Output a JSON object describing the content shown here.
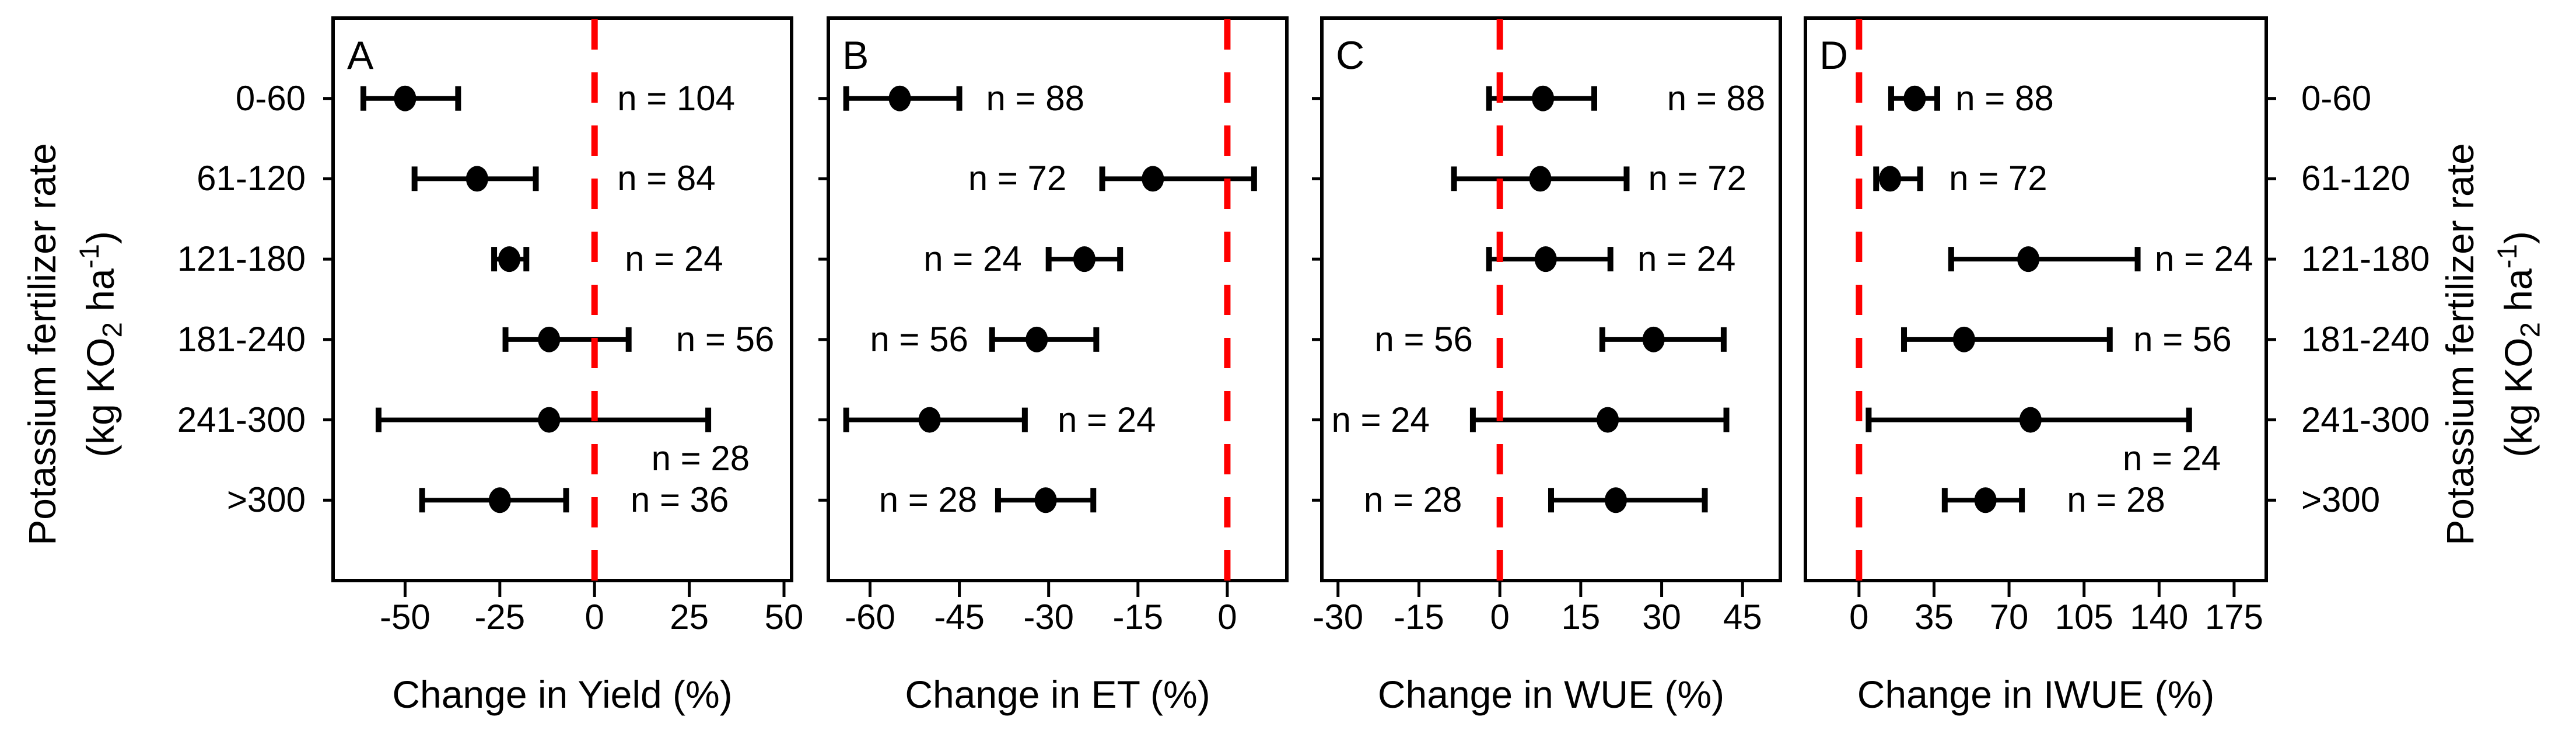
{
  "categories": [
    "0-60",
    "61-120",
    "121-180",
    "181-240",
    "241-300",
    ">300"
  ],
  "y_axis_title": {
    "line1": "Potassium fertilizer rate",
    "line2_pre": "(kg KO",
    "line2_sub": "2",
    "line2_mid": " ha",
    "line2_sup": "-1",
    "line2_post": ")"
  },
  "colors": {
    "marker": "#000000",
    "axis": "#000000",
    "reference_line": "#FF0000",
    "background": "#FFFFFF"
  },
  "chart_data": [
    {
      "type": "scatter",
      "letter": "A",
      "xlabel": "Change in Yield (%)",
      "xlim": [
        -69,
        52
      ],
      "xticks": [
        -50,
        -25,
        0,
        25,
        50
      ],
      "reference_x": 0,
      "grid": false,
      "rows": [
        {
          "category": "0-60",
          "value": -50,
          "lo": -61,
          "hi": -36,
          "n": "n = 104",
          "label_x": 6,
          "label_side": "start",
          "label_dy": 0
        },
        {
          "category": "61-120",
          "value": -31,
          "lo": -47.5,
          "hi": -15.5,
          "n": "n = 84",
          "label_x": 6,
          "label_side": "start",
          "label_dy": 0
        },
        {
          "category": "121-180",
          "value": -22.5,
          "lo": -26.5,
          "hi": -18,
          "n": "n = 24",
          "label_x": 8,
          "label_side": "start",
          "label_dy": 0
        },
        {
          "category": "181-240",
          "value": -12,
          "lo": -23.5,
          "hi": 9,
          "n": "n = 56",
          "label_x": 21.5,
          "label_side": "start",
          "label_dy": 0
        },
        {
          "category": "241-300",
          "value": -12,
          "lo": -57,
          "hi": 30,
          "n": "n = 28",
          "label_x": 15,
          "label_side": "start",
          "label_dy": 0.48
        },
        {
          "category": ">300",
          "value": -25,
          "lo": -45.5,
          "hi": -7.5,
          "n": "n = 36",
          "label_x": 9.5,
          "label_side": "start",
          "label_dy": 0
        }
      ]
    },
    {
      "type": "scatter",
      "letter": "B",
      "xlabel": "Change in ET (%)",
      "xlim": [
        -67,
        10
      ],
      "xticks": [
        -60,
        -45,
        -30,
        -15,
        0
      ],
      "reference_x": 0,
      "grid": false,
      "rows": [
        {
          "category": "0-60",
          "value": -55,
          "lo": -64,
          "hi": -45,
          "n": "n = 88",
          "label_x": -40.5,
          "label_side": "start",
          "label_dy": 0
        },
        {
          "category": "61-120",
          "value": -12.5,
          "lo": -21,
          "hi": 4.5,
          "n": "n = 72",
          "label_x": -27,
          "label_side": "end",
          "label_dy": 0
        },
        {
          "category": "121-180",
          "value": -24,
          "lo": -30,
          "hi": -18,
          "n": "n = 24",
          "label_x": -34.5,
          "label_side": "end",
          "label_dy": 0
        },
        {
          "category": "181-240",
          "value": -32,
          "lo": -39.5,
          "hi": -22,
          "n": "n = 56",
          "label_x": -43.5,
          "label_side": "end",
          "label_dy": 0
        },
        {
          "category": "241-300",
          "value": -50,
          "lo": -64,
          "hi": -34,
          "n": "n = 24",
          "label_x": -28.5,
          "label_side": "start",
          "label_dy": 0
        },
        {
          "category": ">300",
          "value": -30.5,
          "lo": -38.5,
          "hi": -22.5,
          "n": "n = 28",
          "label_x": -42,
          "label_side": "end",
          "label_dy": 0
        }
      ]
    },
    {
      "type": "scatter",
      "letter": "C",
      "xlabel": "Change in WUE (%)",
      "xlim": [
        -33,
        52
      ],
      "xticks": [
        -30,
        -15,
        0,
        15,
        30,
        45
      ],
      "reference_x": 0,
      "grid": false,
      "rows": [
        {
          "category": "0-60",
          "value": 8,
          "lo": -2,
          "hi": 17.5,
          "n": "n = 88",
          "label_x": 31,
          "label_side": "start",
          "label_dy": 0
        },
        {
          "category": "61-120",
          "value": 7.5,
          "lo": -8.5,
          "hi": 23.5,
          "n": "n = 72",
          "label_x": 27.5,
          "label_side": "start",
          "label_dy": 0
        },
        {
          "category": "121-180",
          "value": 8.5,
          "lo": -2,
          "hi": 20.5,
          "n": "n = 24",
          "label_x": 25.5,
          "label_side": "start",
          "label_dy": 0
        },
        {
          "category": "181-240",
          "value": 28.5,
          "lo": 19,
          "hi": 41.5,
          "n": "n = 56",
          "label_x": -5,
          "label_side": "end",
          "label_dy": 0
        },
        {
          "category": "241-300",
          "value": 20,
          "lo": -5,
          "hi": 42,
          "n": "n = 24",
          "label_x": -13,
          "label_side": "end",
          "label_dy": 0
        },
        {
          "category": ">300",
          "value": 21.5,
          "lo": 9.5,
          "hi": 38,
          "n": "n = 28",
          "label_x": -7,
          "label_side": "end",
          "label_dy": 0
        }
      ]
    },
    {
      "type": "scatter",
      "letter": "D",
      "xlabel": "Change in IWUE (%)",
      "xlim": [
        -25,
        190
      ],
      "xticks": [
        0,
        35,
        70,
        105,
        140,
        175
      ],
      "reference_x": 0,
      "grid": false,
      "rows": [
        {
          "category": "0-60",
          "value": 26,
          "lo": 15,
          "hi": 36.5,
          "n": "n = 88",
          "label_x": 45,
          "label_side": "start",
          "label_dy": 0
        },
        {
          "category": "61-120",
          "value": 14.5,
          "lo": 8,
          "hi": 28.5,
          "n": "n = 72",
          "label_x": 42,
          "label_side": "start",
          "label_dy": 0
        },
        {
          "category": "121-180",
          "value": 79,
          "lo": 43,
          "hi": 130,
          "n": "n = 24",
          "label_x": 138,
          "label_side": "start",
          "label_dy": 0
        },
        {
          "category": "181-240",
          "value": 49,
          "lo": 21,
          "hi": 117,
          "n": "n = 56",
          "label_x": 128,
          "label_side": "start",
          "label_dy": 0
        },
        {
          "category": "241-300",
          "value": 80,
          "lo": 4.5,
          "hi": 154,
          "n": "n = 24",
          "label_x": 123,
          "label_side": "start",
          "label_dy": 0.48
        },
        {
          "category": ">300",
          "value": 59,
          "lo": 40,
          "hi": 76,
          "n": "n = 28",
          "label_x": 97,
          "label_side": "start",
          "label_dy": 0
        }
      ]
    }
  ]
}
